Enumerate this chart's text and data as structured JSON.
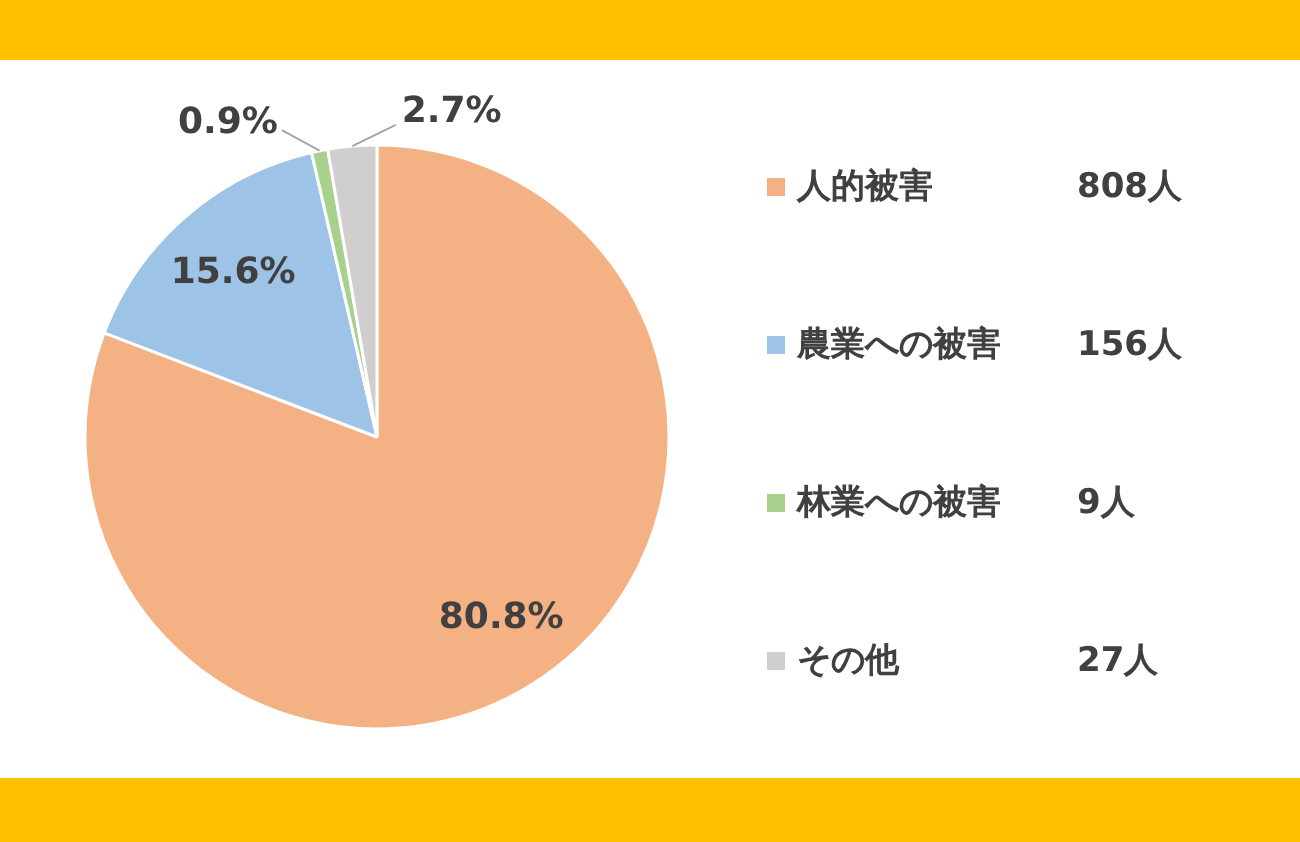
{
  "chart_data": {
    "type": "pie",
    "categories": [
      "人的被害",
      "農業への被害",
      "林業への被害",
      "その他"
    ],
    "values": [
      808,
      156,
      9,
      27
    ],
    "value_labels": [
      "808人",
      "156人",
      "9人",
      "27人"
    ],
    "colors": [
      "#f4b183",
      "#9dc3e6",
      "#a9d18e",
      "#d0cece"
    ],
    "annotations": [
      {
        "text": "80.8%",
        "x": "人的被害"
      },
      {
        "text": "15.6%",
        "x": "農業への被害"
      },
      {
        "text": "0.9%",
        "x": "林業への被害"
      },
      {
        "text": "2.7%",
        "x": "その他"
      }
    ],
    "legend": "right"
  }
}
